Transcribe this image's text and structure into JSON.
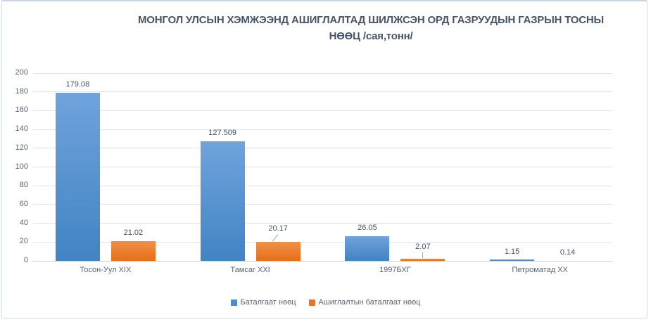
{
  "chart_data": {
    "type": "bar",
    "title": "МОНГОЛ УЛСЫН ХЭМЖЭЭНД АШИГЛАЛТАД   ШИЛЖСЭН ОРД ГАЗРУУДЫН ГАЗРЫН ТОСНЫ\nНӨӨЦ /сая,тонн/",
    "categories": [
      "Тосон-Уул XIX",
      "Тамсаг XXI",
      "1997БХГ",
      "Петроматад XX"
    ],
    "series": [
      {
        "name": "Баталгаат нөөц",
        "values": [
          179.08,
          127.509,
          26.05,
          1.15
        ],
        "labels": [
          "179.08",
          "127.509",
          "26.05",
          "1.15"
        ],
        "color_top": "#6fa3dc",
        "color_bottom": "#4283c4",
        "legend_color": "#4e8bca",
        "label_leaders": [
          "none",
          "none",
          "none",
          "none"
        ]
      },
      {
        "name": "Ашиглалтын баталгаат нөөц",
        "values": [
          21.02,
          20.17,
          2.07,
          0.14
        ],
        "labels": [
          "21.02",
          "20.17",
          "2.07",
          "0.14"
        ],
        "color_top": "#f09048",
        "color_bottom": "#e76e17",
        "legend_color": "#ed7224",
        "label_leaders": [
          "none",
          "diagonal",
          "vertical",
          "none"
        ]
      }
    ],
    "ylim": [
      0,
      200
    ],
    "ytick_step": 20,
    "yticks": [
      "0",
      "20",
      "40",
      "60",
      "80",
      "100",
      "120",
      "140",
      "160",
      "180",
      "200"
    ],
    "grid": true,
    "legend_position": "bottom"
  },
  "colors": {
    "title": "#44546a",
    "tick_label": "#5a6474",
    "data_label": "#44506a",
    "gridline": "#dde3ed",
    "axis_line": "#c9d1de",
    "frame_border": "#d5dce8",
    "leader_line": "#9aa3ae",
    "background": "#ffffff"
  }
}
